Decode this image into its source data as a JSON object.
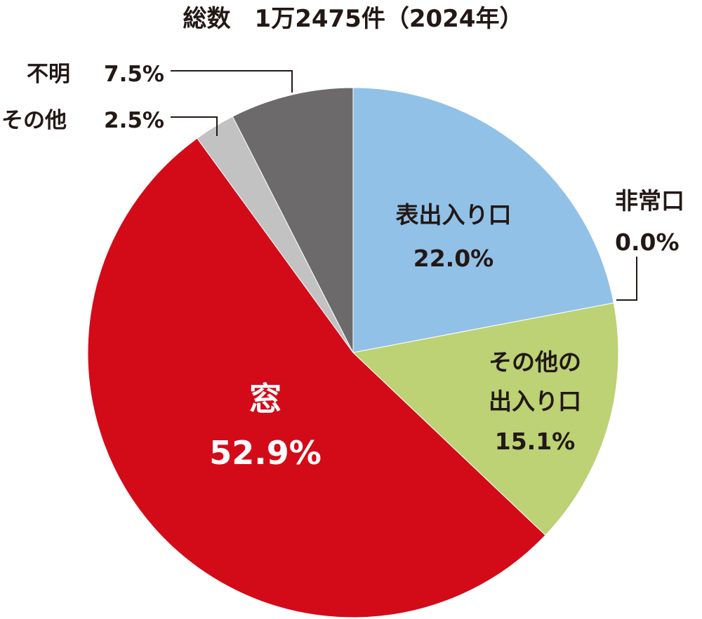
{
  "chart_data": {
    "type": "pie",
    "title": "総数　1万2475件（2024年）",
    "start": "12 o'clock",
    "direction": "clockwise",
    "slices": [
      {
        "key": "front",
        "name_lines": [
          "表出入り口"
        ],
        "label": "22.0%",
        "value": 22.0,
        "color": "#92c1e7"
      },
      {
        "key": "emergency",
        "name_lines": [
          "非常口"
        ],
        "label": "0.0%",
        "value": 0.0,
        "color": "#231815"
      },
      {
        "key": "other_door",
        "name_lines": [
          "その他の",
          "出入り口"
        ],
        "label": "15.1%",
        "value": 15.1,
        "color": "#bcd274"
      },
      {
        "key": "window",
        "name_lines": [
          "窓"
        ],
        "label": "52.9%",
        "value": 52.9,
        "color": "#d30b19"
      },
      {
        "key": "other",
        "name_lines": [
          "その他"
        ],
        "label": "2.5%",
        "value": 2.5,
        "color": "#c2c2c2"
      },
      {
        "key": "unknown",
        "name_lines": [
          "不明"
        ],
        "label": "7.5%",
        "value": 7.5,
        "color": "#6d6a6b"
      }
    ]
  }
}
